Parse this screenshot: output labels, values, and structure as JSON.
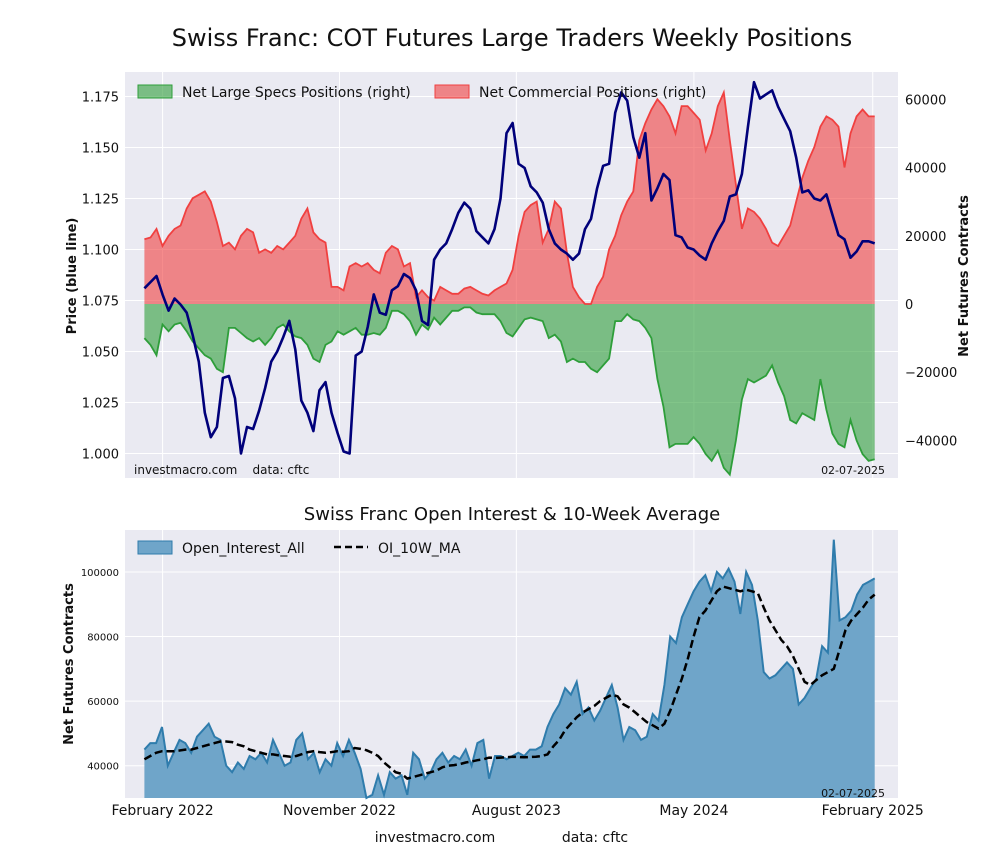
{
  "page": {
    "title": "Swiss Franc: COT Futures Large Traders Weekly Positions",
    "footer_site": "investmacro.com",
    "footer_data": "data: cftc"
  },
  "chart_data": [
    {
      "type": "area",
      "title": "Swiss Franc: COT Futures Large Traders Weekly Positions",
      "ylabel_left": "Price (blue line)",
      "ylabel_right": "Net Futures Contracts",
      "ylim_left": [
        0.988,
        1.187
      ],
      "ylim_right": [
        -51000,
        68000
      ],
      "left_ticks": [
        1.0,
        1.025,
        1.05,
        1.075,
        1.1,
        1.125,
        1.15,
        1.175
      ],
      "left_tick_labels": [
        "1.000",
        "1.025",
        "1.050",
        "1.075",
        "1.100",
        "1.125",
        "1.150",
        "1.175"
      ],
      "right_ticks": [
        -40000,
        -20000,
        0,
        20000,
        40000,
        60000
      ],
      "right_tick_labels": [
        "−40000",
        "−20000",
        "0",
        "20000",
        "40000",
        "60000"
      ],
      "grid": true,
      "legend_position": "top-left",
      "legend": [
        "Net Large Specs Positions (right)",
        "Net Commercial Positions (right)"
      ],
      "watermark_left": "investmacro.com    data: cftc",
      "date_label": "02-07-2025",
      "colors": {
        "specs": "#2e9e3a",
        "commercial": "#f04040",
        "price": "#00007a"
      },
      "series": [
        {
          "name": "Net Large Specs Positions (right)",
          "date_start": "2022-01-04",
          "date_end": "2025-02-04",
          "values": [
            -10000,
            -12000,
            -15000,
            -6000,
            -8000,
            -6000,
            -5500,
            -8000,
            -11000,
            -13000,
            -15000,
            -16000,
            -19000,
            -20000,
            -7000,
            -7000,
            -8500,
            -10000,
            -11000,
            -10000,
            -12000,
            -10000,
            -7000,
            -6000,
            -8000,
            -9500,
            -10000,
            -12000,
            -16000,
            -17000,
            -12000,
            -11000,
            -8000,
            -9000,
            -8000,
            -7000,
            -9000,
            -9000,
            -8500,
            -9000,
            -7000,
            -2000,
            -2000,
            -3000,
            -5000,
            -9000,
            -6000,
            -7500,
            -4000,
            -6000,
            -4000,
            -2000,
            -2000,
            -1000,
            -1000,
            -2500,
            -3000,
            -3000,
            -3000,
            -5000,
            -8500,
            -9500,
            -7000,
            -4500,
            -4000,
            -4500,
            -5000,
            -10000,
            -9000,
            -11000,
            -17000,
            -16000,
            -17000,
            -17000,
            -19000,
            -20000,
            -18000,
            -16000,
            -5000,
            -5000,
            -3000,
            -4500,
            -5000,
            -7000,
            -10000,
            -22000,
            -30000,
            -42000,
            -41000,
            -41000,
            -41000,
            -39000,
            -41000,
            -44000,
            -46000,
            -43000,
            -48000,
            -50000,
            -40000,
            -28000,
            -22000,
            -23000,
            -22000,
            -21000,
            -18000,
            -23000,
            -27000,
            -34000,
            -35000,
            -32000,
            -33000,
            -34000,
            -22000,
            -31000,
            -38000,
            -41000,
            -42000,
            -34000,
            -40000,
            -44000,
            -46000,
            -45500
          ]
        },
        {
          "name": "Net Commercial Positions (right)",
          "date_start": "2022-01-04",
          "date_end": "2025-02-04",
          "values": [
            19000,
            19500,
            22000,
            17000,
            20000,
            22000,
            23000,
            28000,
            31000,
            32000,
            33000,
            30000,
            24000,
            17000,
            18000,
            16000,
            20000,
            22000,
            21000,
            15000,
            16000,
            15000,
            17000,
            16000,
            18000,
            20000,
            25000,
            28000,
            21000,
            19000,
            18000,
            5000,
            5000,
            4000,
            11000,
            12000,
            11000,
            12000,
            10000,
            9000,
            15000,
            17000,
            16000,
            11000,
            12000,
            2000,
            4000,
            2000,
            1000,
            5000,
            4000,
            3000,
            3000,
            4500,
            5000,
            4000,
            3000,
            2500,
            4000,
            5000,
            6000,
            10000,
            20000,
            27000,
            29000,
            30000,
            18000,
            22000,
            30000,
            28000,
            15000,
            5000,
            2000,
            0,
            0,
            5000,
            8000,
            16000,
            20000,
            26000,
            30000,
            33000,
            48000,
            53000,
            57000,
            60000,
            58000,
            55000,
            50000,
            58000,
            58000,
            56000,
            54000,
            45000,
            50000,
            58000,
            62000,
            48000,
            35000,
            22000,
            28000,
            27000,
            25000,
            22000,
            18000,
            17000,
            20000,
            23000,
            30000,
            37000,
            42000,
            46000,
            52000,
            55000,
            54000,
            52000,
            40000,
            50000,
            55000,
            57000,
            55000,
            55000
          ]
        },
        {
          "name": "Price",
          "date_start": "2022-01-04",
          "date_end": "2025-02-04",
          "values": [
            1.081,
            1.084,
            1.087,
            1.078,
            1.07,
            1.076,
            1.073,
            1.069,
            1.058,
            1.045,
            1.02,
            1.008,
            1.013,
            1.037,
            1.038,
            1.027,
            1.0,
            1.013,
            1.012,
            1.021,
            1.032,
            1.045,
            1.05,
            1.057,
            1.065,
            1.051,
            1.026,
            1.02,
            1.011,
            1.031,
            1.035,
            1.02,
            1.01,
            1.001,
            1.0,
            1.048,
            1.05,
            1.062,
            1.078,
            1.069,
            1.068,
            1.08,
            1.082,
            1.088,
            1.086,
            1.08,
            1.065,
            1.063,
            1.095,
            1.1,
            1.103,
            1.11,
            1.118,
            1.123,
            1.12,
            1.109,
            1.106,
            1.103,
            1.11,
            1.125,
            1.157,
            1.162,
            1.142,
            1.14,
            1.131,
            1.128,
            1.123,
            1.11,
            1.103,
            1.1,
            1.098,
            1.095,
            1.098,
            1.11,
            1.115,
            1.13,
            1.141,
            1.142,
            1.167,
            1.177,
            1.173,
            1.155,
            1.145,
            1.157,
            1.124,
            1.13,
            1.137,
            1.134,
            1.107,
            1.106,
            1.101,
            1.1,
            1.097,
            1.095,
            1.103,
            1.109,
            1.114,
            1.126,
            1.127,
            1.137,
            1.16,
            1.182,
            1.174,
            1.176,
            1.178,
            1.17,
            1.164,
            1.158,
            1.145,
            1.128,
            1.129,
            1.125,
            1.124,
            1.127,
            1.117,
            1.107,
            1.105,
            1.096,
            1.099,
            1.104,
            1.104,
            1.103
          ]
        }
      ]
    },
    {
      "type": "area",
      "title": "Swiss Franc Open Interest & 10-Week Average",
      "ylabel": "Net Futures Contracts",
      "ylim": [
        30000,
        113000
      ],
      "y_ticks": [
        40000,
        60000,
        80000,
        100000
      ],
      "y_tick_labels": [
        "40000",
        "60000",
        "80000",
        "100000"
      ],
      "x_ticks": [
        "2022-02-01",
        "2022-11-01",
        "2023-08-01",
        "2024-05-01",
        "2025-02-01"
      ],
      "x_tick_labels": [
        "February 2022",
        "November 2022",
        "August 2023",
        "May 2024",
        "February 2025"
      ],
      "grid": true,
      "legend_position": "top-left",
      "legend": [
        "Open_Interest_All",
        "OI_10W_MA"
      ],
      "date_label": "02-07-2025",
      "colors": {
        "oi_fill": "#6fa5c9",
        "oi_line": "#2f7cac",
        "ma": "#000000"
      },
      "series": [
        {
          "name": "Open_Interest_All",
          "date_start": "2022-01-04",
          "date_end": "2025-02-04",
          "values": [
            45000,
            47000,
            47000,
            52000,
            40000,
            44000,
            48000,
            47000,
            44000,
            49000,
            51000,
            53000,
            49000,
            48000,
            40000,
            38000,
            41000,
            39000,
            43000,
            42000,
            44000,
            41000,
            48000,
            44000,
            40000,
            41000,
            48000,
            50000,
            42000,
            44000,
            38000,
            42000,
            40000,
            47000,
            43000,
            48000,
            44000,
            39000,
            29000,
            31000,
            37000,
            31000,
            38000,
            36000,
            37000,
            31000,
            44000,
            42000,
            36000,
            38000,
            42000,
            44000,
            41000,
            43000,
            42000,
            45000,
            40000,
            47000,
            48000,
            36000,
            43000,
            43000,
            42000,
            43000,
            44000,
            43000,
            45000,
            45000,
            46000,
            52000,
            56000,
            59000,
            64000,
            62000,
            66000,
            56000,
            58000,
            54000,
            57000,
            61000,
            65000,
            58000,
            48000,
            52000,
            51000,
            48000,
            49000,
            56000,
            54000,
            65000,
            80000,
            78000,
            86000,
            90000,
            94000,
            97000,
            99000,
            94000,
            100000,
            98000,
            101000,
            97000,
            87000,
            100000,
            96000,
            85000,
            69000,
            67000,
            68000,
            70000,
            72000,
            70000,
            59000,
            61000,
            64000,
            67000,
            77000,
            75000,
            110000,
            85000,
            86000,
            88000,
            93000,
            96000,
            97000,
            98000
          ]
        },
        {
          "name": "OI_10W_MA",
          "date_start": "2022-01-04",
          "date_end": "2025-02-04",
          "values": [
            42000,
            43000,
            44000,
            44500,
            44500,
            44500,
            44700,
            45000,
            45000,
            45500,
            46000,
            46500,
            47000,
            47500,
            47500,
            47300,
            46500,
            46000,
            45000,
            44500,
            44000,
            43500,
            43500,
            43200,
            43000,
            42800,
            43000,
            43600,
            44200,
            44500,
            44200,
            44000,
            44200,
            44500,
            44300,
            44500,
            45500,
            45200,
            44800,
            44000,
            43000,
            41000,
            39500,
            38000,
            37500,
            36000,
            36500,
            37000,
            37500,
            38000,
            38500,
            39500,
            40000,
            40200,
            40500,
            41000,
            41300,
            41700,
            42000,
            42500,
            42400,
            42500,
            42600,
            42800,
            42700,
            42600,
            42700,
            42800,
            43000,
            43500,
            46000,
            48000,
            51000,
            53000,
            55000,
            56500,
            57500,
            58500,
            60000,
            61000,
            62000,
            61500,
            59000,
            58000,
            56500,
            55000,
            53500,
            52500,
            51500,
            53000,
            57000,
            62000,
            67000,
            73000,
            80000,
            86000,
            88000,
            91000,
            94000,
            95500,
            95000,
            94500,
            94000,
            94500,
            94000,
            93500,
            89000,
            85000,
            82000,
            79000,
            77000,
            74000,
            70000,
            66000,
            65000,
            66500,
            68000,
            69000,
            70000,
            76000,
            82000,
            85000,
            87000,
            89000,
            91500,
            93000
          ]
        }
      ]
    }
  ]
}
